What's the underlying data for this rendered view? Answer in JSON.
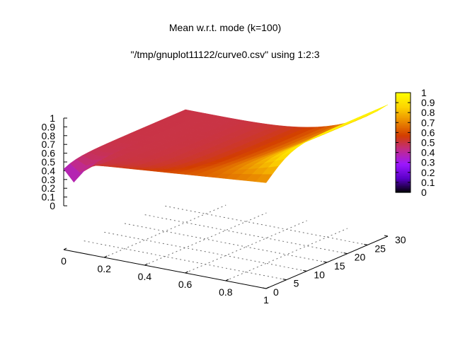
{
  "chart_data": {
    "type": "surface",
    "title": "Mean w.r.t. mode (k=100)",
    "subtitle": "\"/tmp/gnuplot11122/curve0.csv\" using 1:2:3",
    "x_range": [
      0,
      1
    ],
    "y_range": [
      0,
      30
    ],
    "z_range": [
      0,
      1
    ],
    "cb_range": [
      0,
      1
    ],
    "grid": true,
    "colorbox": "right",
    "palette": [
      "#000000",
      "#5a00c8",
      "#9b17ff",
      "#c02a8c",
      "#d23d00",
      "#ea8a00",
      "#fdd400",
      "#ffff00"
    ],
    "x_ticks": [
      "0",
      "0.2",
      "0.4",
      "0.6",
      "0.8",
      "1"
    ],
    "y_ticks": [
      "0",
      "5",
      "10",
      "15",
      "20",
      "25",
      "30"
    ],
    "z_ticks": [
      "0",
      "0.1",
      "0.2",
      "0.3",
      "0.4",
      "0.5",
      "0.6",
      "0.7",
      "0.8",
      "0.9",
      "1"
    ],
    "cb_ticks": [
      "0",
      "0.1",
      "0.2",
      "0.3",
      "0.4",
      "0.5",
      "0.6",
      "0.7",
      "0.8",
      "0.9",
      "1"
    ],
    "x": [
      0,
      0.05,
      0.1,
      0.15,
      0.2,
      0.25,
      0.3,
      0.35,
      0.4,
      0.45,
      0.5,
      0.55,
      0.6,
      0.65,
      0.7,
      0.75,
      0.8,
      0.85,
      0.9,
      0.95,
      1.0
    ],
    "y": [
      0,
      1.5,
      3,
      4.5,
      6,
      7.5,
      9,
      10.5,
      12,
      13.5,
      15,
      16.5,
      18,
      19.5,
      21,
      22.5,
      24,
      25.5,
      27,
      28.5,
      30
    ],
    "z_model": "mean of mode; z(0,y)=0.5, z(1,y)=1/(1+exp(-0.3*y)), smooth in x with dip near x=0.05"
  }
}
